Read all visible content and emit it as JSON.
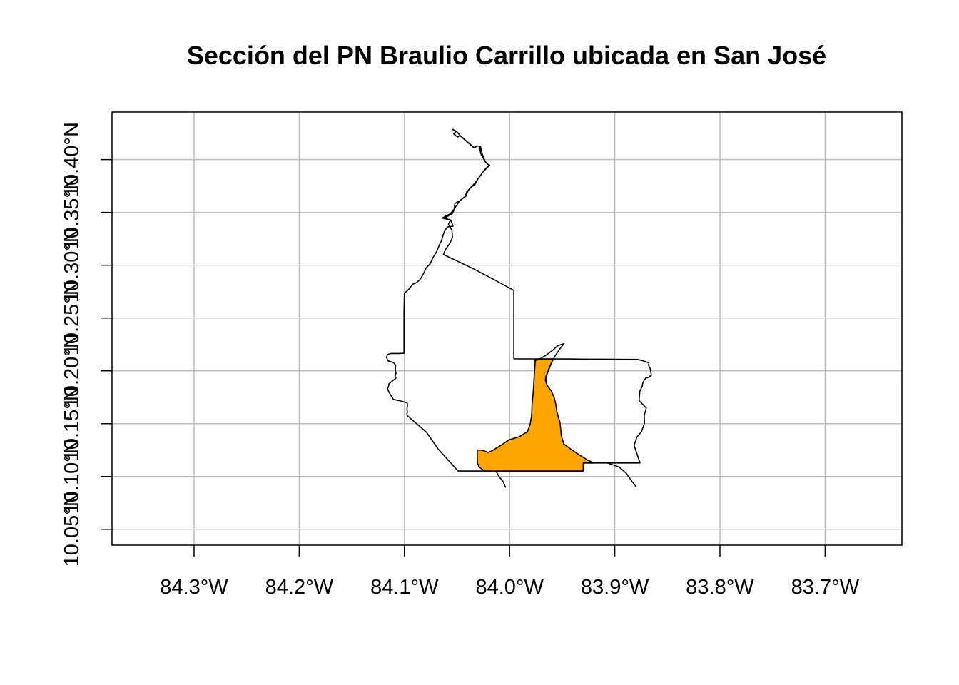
{
  "title": "Sección del PN Braulio Carrillo ubicada en San José",
  "x_axis": {
    "ticks": [
      {
        "value": -84.3,
        "label": "84.3°W"
      },
      {
        "value": -84.2,
        "label": "84.2°W"
      },
      {
        "value": -84.1,
        "label": "84.1°W"
      },
      {
        "value": -84.0,
        "label": "84.0°W"
      },
      {
        "value": -83.9,
        "label": "83.9°W"
      },
      {
        "value": -83.8,
        "label": "83.8°W"
      },
      {
        "value": -83.7,
        "label": "83.7°W"
      }
    ]
  },
  "y_axis": {
    "ticks": [
      {
        "value": 10.05,
        "label": "10.05°N"
      },
      {
        "value": 10.1,
        "label": "10.10°N"
      },
      {
        "value": 10.15,
        "label": "10.15°N"
      },
      {
        "value": 10.2,
        "label": "10.20°N"
      },
      {
        "value": 10.25,
        "label": "10.25°N"
      },
      {
        "value": 10.3,
        "label": "10.30°N"
      },
      {
        "value": 10.35,
        "label": "10.35°N"
      },
      {
        "value": 10.4,
        "label": "10.40°N"
      }
    ]
  },
  "map_extent": {
    "lon": [
      -84.378,
      -83.627
    ],
    "lat": [
      10.035,
      10.445
    ]
  },
  "grid": true,
  "colors": {
    "highlight_fill": "#FFA500",
    "outline": "#000000",
    "grid": "#BEBEBE",
    "background": "#FFFFFF"
  },
  "layers": [
    {
      "name": "park-outline",
      "fill": "none",
      "coordinates": [
        [
          -84.0544,
          10.4288
        ],
        [
          -84.0512,
          10.4262
        ],
        [
          -84.0532,
          10.4244
        ],
        [
          -84.0495,
          10.4213
        ],
        [
          -84.047,
          10.4228
        ],
        [
          -84.0336,
          10.4111
        ],
        [
          -84.0308,
          10.4129
        ],
        [
          -84.0288,
          10.4128
        ],
        [
          -84.0273,
          10.4054
        ],
        [
          -84.0234,
          10.3984
        ],
        [
          -84.0216,
          10.3961
        ],
        [
          -84.019,
          10.3947
        ],
        [
          -84.0225,
          10.3918
        ],
        [
          -84.026,
          10.3872
        ],
        [
          -84.03,
          10.3818
        ],
        [
          -84.033,
          10.3763
        ],
        [
          -84.0372,
          10.3734
        ],
        [
          -84.0407,
          10.3695
        ],
        [
          -84.0422,
          10.3652
        ],
        [
          -84.0455,
          10.3623
        ],
        [
          -84.0482,
          10.3605
        ],
        [
          -84.052,
          10.3584
        ],
        [
          -84.0528,
          10.353
        ],
        [
          -84.0565,
          10.3487
        ],
        [
          -84.064,
          10.3446
        ],
        [
          -84.056,
          10.3426
        ],
        [
          -84.0545,
          10.3389
        ],
        [
          -84.0538,
          10.3369
        ],
        [
          -84.0592,
          10.3362
        ],
        [
          -84.062,
          10.332
        ],
        [
          -84.0632,
          10.3284
        ],
        [
          -84.0648,
          10.3232
        ],
        [
          -84.0666,
          10.3195
        ],
        [
          -84.0693,
          10.3129
        ],
        [
          -84.0732,
          10.3065
        ],
        [
          -84.0755,
          10.3014
        ],
        [
          -84.0794,
          10.2973
        ],
        [
          -84.0823,
          10.2913
        ],
        [
          -84.085,
          10.2866
        ],
        [
          -84.0886,
          10.2834
        ],
        [
          -84.092,
          10.282
        ],
        [
          -84.096,
          10.2771
        ],
        [
          -84.1,
          10.2734
        ],
        [
          -84.1004,
          10.2548
        ],
        [
          -84.1004,
          10.2384
        ],
        [
          -84.1004,
          10.2166
        ],
        [
          -84.1051,
          10.2164
        ],
        [
          -84.1132,
          10.2164
        ],
        [
          -84.1162,
          10.2152
        ],
        [
          -84.117,
          10.2125
        ],
        [
          -84.1155,
          10.2094
        ],
        [
          -84.1132,
          10.2087
        ],
        [
          -84.1103,
          10.2078
        ],
        [
          -84.1083,
          10.2052
        ],
        [
          -84.1087,
          10.2007
        ],
        [
          -84.108,
          10.1978
        ],
        [
          -84.109,
          10.1944
        ],
        [
          -84.108,
          10.1931
        ],
        [
          -84.1119,
          10.19
        ],
        [
          -84.1147,
          10.1877
        ],
        [
          -84.1152,
          10.185
        ],
        [
          -84.116,
          10.1833
        ],
        [
          -84.115,
          10.1802
        ],
        [
          -84.1106,
          10.173
        ],
        [
          -84.1005,
          10.1707
        ],
        [
          -84.0975,
          10.1697
        ],
        [
          -84.097,
          10.1677
        ],
        [
          -84.0976,
          10.1642
        ],
        [
          -84.0973,
          10.1614
        ],
        [
          -84.0976,
          10.1591
        ],
        [
          -84.0974,
          10.1577
        ],
        [
          -84.0789,
          10.1417
        ],
        [
          -84.0679,
          10.126
        ],
        [
          -84.049,
          10.1052
        ],
        [
          -84.031,
          10.1052
        ],
        [
          -84.015,
          10.1052
        ],
        [
          -84.004,
          10.1052
        ],
        [
          -83.994,
          10.1052
        ],
        [
          -83.987,
          10.1052
        ],
        [
          -83.981,
          10.1052
        ],
        [
          -83.972,
          10.1052
        ],
        [
          -83.965,
          10.1052
        ],
        [
          -83.95,
          10.1052
        ],
        [
          -83.93,
          10.1052
        ],
        [
          -83.93,
          10.1128
        ],
        [
          -83.92,
          10.1128
        ],
        [
          -83.909,
          10.1128
        ],
        [
          -83.898,
          10.1128
        ],
        [
          -83.876,
          10.1128
        ],
        [
          -83.879,
          10.1218
        ],
        [
          -83.8816,
          10.1294
        ],
        [
          -83.879,
          10.1372
        ],
        [
          -83.8745,
          10.1427
        ],
        [
          -83.8718,
          10.1505
        ],
        [
          -83.872,
          10.1578
        ],
        [
          -83.87,
          10.1648
        ],
        [
          -83.8769,
          10.1719
        ],
        [
          -83.8762,
          10.1809
        ],
        [
          -83.8739,
          10.1852
        ],
        [
          -83.8735,
          10.1882
        ],
        [
          -83.872,
          10.1911
        ],
        [
          -83.8705,
          10.1931
        ],
        [
          -83.8675,
          10.194
        ],
        [
          -83.8652,
          10.196
        ],
        [
          -83.8665,
          10.2027
        ],
        [
          -83.868,
          10.2053
        ],
        [
          -83.8675,
          10.2075
        ],
        [
          -83.8729,
          10.2094
        ],
        [
          -83.8784,
          10.2108
        ],
        [
          -83.8889,
          10.2108
        ],
        [
          -83.9,
          10.2109
        ],
        [
          -83.9111,
          10.211
        ],
        [
          -83.9222,
          10.211
        ],
        [
          -83.9333,
          10.2111
        ],
        [
          -83.9444,
          10.2112
        ],
        [
          -83.9556,
          10.2112
        ],
        [
          -83.9667,
          10.2112
        ],
        [
          -83.9778,
          10.2113
        ],
        [
          -83.9889,
          10.2113
        ],
        [
          -83.996,
          10.2114
        ],
        [
          -83.996,
          10.2229
        ],
        [
          -83.996,
          10.2336
        ],
        [
          -83.996,
          10.2442
        ],
        [
          -83.996,
          10.2549
        ],
        [
          -83.996,
          10.2656
        ],
        [
          -83.996,
          10.2762
        ],
        [
          -84.016,
          10.287
        ],
        [
          -84.0356,
          10.2972
        ],
        [
          -84.063,
          10.3102
        ],
        [
          -84.0604,
          10.3158
        ],
        [
          -84.057,
          10.3204
        ],
        [
          -84.0543,
          10.3264
        ],
        [
          -84.0548,
          10.3331
        ],
        [
          -84.0582,
          10.3387
        ],
        [
          -84.056,
          10.3428
        ],
        [
          -84.062,
          10.3445
        ],
        [
          -84.0545,
          10.3488
        ],
        [
          -84.0512,
          10.3555
        ],
        [
          -84.047,
          10.3615
        ],
        [
          -84.0416,
          10.3653
        ],
        [
          -84.0395,
          10.3705
        ],
        [
          -84.0362,
          10.3742
        ],
        [
          -84.032,
          10.379
        ],
        [
          -84.0282,
          10.3842
        ],
        [
          -84.025,
          10.3886
        ],
        [
          -84.021,
          10.3926
        ],
        [
          -84.0193,
          10.3947
        ],
        [
          -84.0218,
          10.3962
        ],
        [
          -84.0235,
          10.399
        ],
        [
          -84.026,
          10.4053
        ],
        [
          -84.0278,
          10.4125
        ],
        [
          -84.031,
          10.413
        ],
        [
          -84.034,
          10.4112
        ],
        [
          -84.047,
          10.4225
        ],
        [
          -84.05,
          10.4262
        ],
        [
          -84.0544,
          10.4288
        ]
      ]
    },
    {
      "name": "san-jose-section",
      "fill": "#FFA500",
      "coordinates": [
        [
          -83.9754,
          10.2111
        ],
        [
          -83.9585,
          10.2112
        ],
        [
          -83.9617,
          10.2035
        ],
        [
          -83.9642,
          10.1973
        ],
        [
          -83.966,
          10.1912
        ],
        [
          -83.9643,
          10.1862
        ],
        [
          -83.9603,
          10.1808
        ],
        [
          -83.9575,
          10.1745
        ],
        [
          -83.956,
          10.168
        ],
        [
          -83.955,
          10.161
        ],
        [
          -83.952,
          10.151
        ],
        [
          -83.9508,
          10.1387
        ],
        [
          -83.9485,
          10.1308
        ],
        [
          -83.9425,
          10.1265
        ],
        [
          -83.9345,
          10.121
        ],
        [
          -83.9265,
          10.116
        ],
        [
          -83.92,
          10.1128
        ],
        [
          -83.93,
          10.1128
        ],
        [
          -83.93,
          10.1052
        ],
        [
          -83.95,
          10.1052
        ],
        [
          -83.965,
          10.1052
        ],
        [
          -83.972,
          10.1052
        ],
        [
          -83.981,
          10.1052
        ],
        [
          -83.987,
          10.1052
        ],
        [
          -83.994,
          10.1052
        ],
        [
          -84.004,
          10.1052
        ],
        [
          -84.015,
          10.1052
        ],
        [
          -84.024,
          10.1052
        ],
        [
          -84.029,
          10.109
        ],
        [
          -84.0306,
          10.1128
        ],
        [
          -84.0308,
          10.1216
        ],
        [
          -84.0306,
          10.1252
        ],
        [
          -84.0258,
          10.1248
        ],
        [
          -84.0203,
          10.1228
        ],
        [
          -84.0165,
          10.1245
        ],
        [
          -84.0125,
          10.127
        ],
        [
          -84.007,
          10.1303
        ],
        [
          -84.001,
          10.1345
        ],
        [
          -83.9905,
          10.1378
        ],
        [
          -83.983,
          10.1425
        ],
        [
          -83.9804,
          10.1496
        ],
        [
          -83.979,
          10.1582
        ],
        [
          -83.9786,
          10.169
        ],
        [
          -83.9776,
          10.179
        ],
        [
          -83.9771,
          10.1862
        ],
        [
          -83.9766,
          10.195
        ],
        [
          -83.976,
          10.204
        ],
        [
          -83.9754,
          10.2111
        ]
      ]
    },
    {
      "name": "river-boundary",
      "fill": "none",
      "coordinates": [
        [
          -83.9766,
          10.2092
        ],
        [
          -83.9708,
          10.2115
        ],
        [
          -83.965,
          10.215
        ],
        [
          -83.959,
          10.2195
        ],
        [
          -83.9543,
          10.2238
        ],
        [
          -83.9482,
          10.2257
        ],
        [
          -83.9516,
          10.2216
        ],
        [
          -83.9567,
          10.2141
        ],
        [
          -83.9605,
          10.207
        ],
        [
          -83.9635,
          10.2
        ],
        [
          -83.9658,
          10.1934
        ],
        [
          -83.9643,
          10.1862
        ]
      ]
    },
    {
      "name": "southern-river",
      "fill": "none",
      "coordinates": [
        [
          -83.907,
          10.1128
        ],
        [
          -83.896,
          10.109
        ],
        [
          -83.889,
          10.103
        ],
        [
          -83.884,
          10.0958
        ],
        [
          -83.88,
          10.0905
        ]
      ]
    },
    {
      "name": "southwest-river",
      "fill": "none",
      "coordinates": [
        [
          -84.013,
          10.1052
        ],
        [
          -84.01,
          10.1
        ],
        [
          -84.006,
          10.095
        ],
        [
          -84.0038,
          10.0895
        ]
      ]
    }
  ]
}
